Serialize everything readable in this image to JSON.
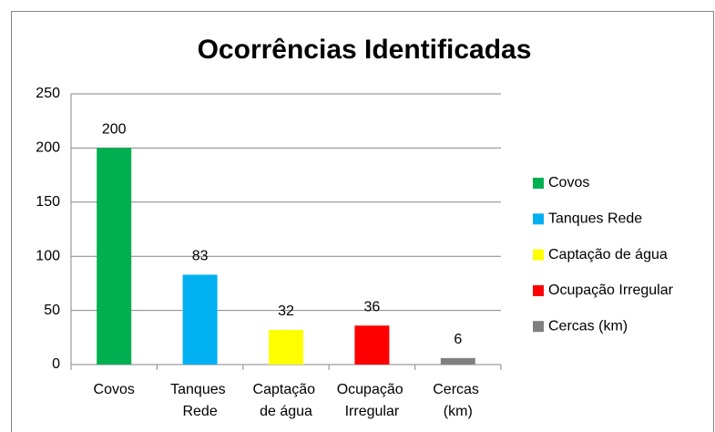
{
  "chart_data": {
    "type": "bar",
    "title": "Ocorrências Identificadas",
    "categories": [
      "Covos",
      "Tanques Rede",
      "Captação de água",
      "Ocupação Irregular",
      "Cercas (km)"
    ],
    "values": [
      200,
      83,
      32,
      36,
      6
    ],
    "colors": [
      "#00b050",
      "#00b0f0",
      "#ffff00",
      "#ff0000",
      "#808080"
    ],
    "ylim": [
      0,
      250
    ],
    "yticks": [
      0,
      50,
      100,
      150,
      200,
      250
    ],
    "grid": true,
    "legend": "right"
  }
}
